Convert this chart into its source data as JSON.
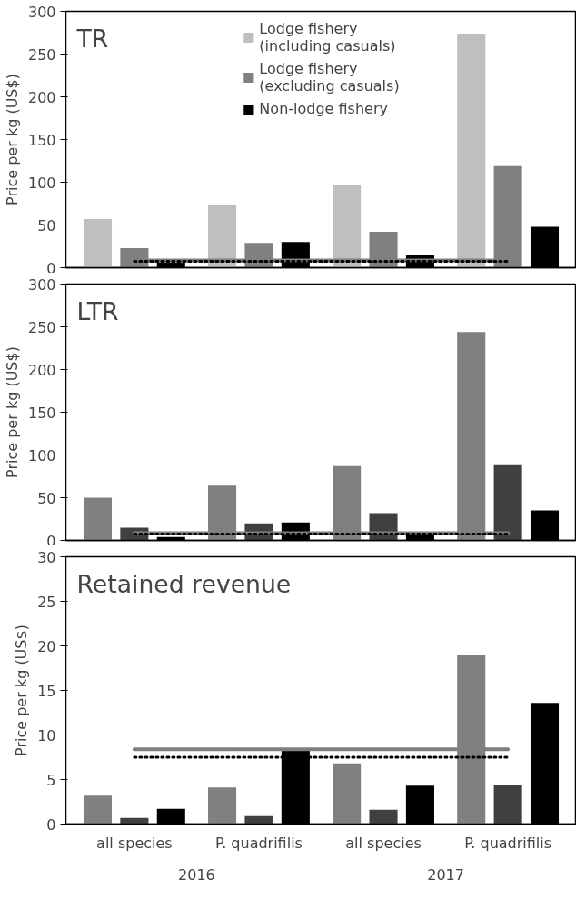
{
  "chart_data": [
    {
      "type": "bar",
      "title": "TR",
      "ylabel": "Price per kg (US$)",
      "tick_labels": "y",
      "legend": "top",
      "grid": false,
      "ylim": [
        0,
        300
      ],
      "yticks": [
        0,
        50,
        100,
        150,
        200,
        250,
        300
      ],
      "series": [
        {
          "name": "Lodge fishery\n(including casuals)",
          "color": "#bfbfbf",
          "values": [
            57,
            73,
            97,
            274
          ]
        },
        {
          "name": "Lodge fishery\n(excluding casuals)",
          "color": "#808080",
          "values": [
            23,
            29,
            42,
            119
          ]
        },
        {
          "name": "Non-lodge fishery",
          "color": "#000000",
          "values": [
            6,
            30,
            15,
            48
          ]
        }
      ],
      "ref_lines": [
        {
          "axis": "y",
          "value": 8.4,
          "label": null,
          "color": "#7f7f7f",
          "line_style": "solid"
        },
        {
          "axis": "y",
          "value": 7.5,
          "label": null,
          "color": "#000000",
          "line_style": "dotted"
        }
      ]
    },
    {
      "type": "bar",
      "title": "LTR",
      "ylabel": "Price per kg (US$)",
      "tick_labels": "y",
      "grid": false,
      "ylim": [
        0,
        300
      ],
      "yticks": [
        0,
        50,
        100,
        150,
        200,
        250,
        300
      ],
      "series": [
        {
          "color": "#808080",
          "values": [
            50,
            64,
            87,
            244
          ]
        },
        {
          "color": "#404040",
          "values": [
            15,
            20,
            32,
            89
          ]
        },
        {
          "color": "#000000",
          "values": [
            4,
            21,
            8,
            35
          ]
        }
      ],
      "ref_lines": [
        {
          "axis": "y",
          "value": 8.4,
          "label": null,
          "color": "#7f7f7f",
          "line_style": "solid"
        },
        {
          "axis": "y",
          "value": 7.5,
          "label": null,
          "color": "#000000",
          "line_style": "dotted"
        }
      ]
    },
    {
      "type": "bar",
      "title": "Retained revenue",
      "ylabel": "Price per kg (US$)",
      "categories": [
        "all species",
        "P. quadrifilis",
        "all species",
        "P. quadrifilis"
      ],
      "grid": false,
      "ylim": [
        0,
        30
      ],
      "yticks": [
        0,
        5,
        10,
        15,
        20,
        25,
        30
      ],
      "series": [
        {
          "color": "#808080",
          "values": [
            3.2,
            4.1,
            6.8,
            19.0
          ]
        },
        {
          "color": "#404040",
          "values": [
            0.7,
            0.9,
            1.6,
            4.4
          ]
        },
        {
          "color": "#000000",
          "values": [
            1.7,
            8.3,
            4.3,
            13.6
          ]
        }
      ],
      "ref_lines": [
        {
          "axis": "y",
          "value": 8.4,
          "label": null,
          "color": "#7f7f7f",
          "line_style": "solid"
        },
        {
          "axis": "y",
          "value": 7.5,
          "label": null,
          "color": "#000000",
          "line_style": "dotted"
        }
      ],
      "annotations": [
        "2016",
        "2017"
      ]
    }
  ]
}
